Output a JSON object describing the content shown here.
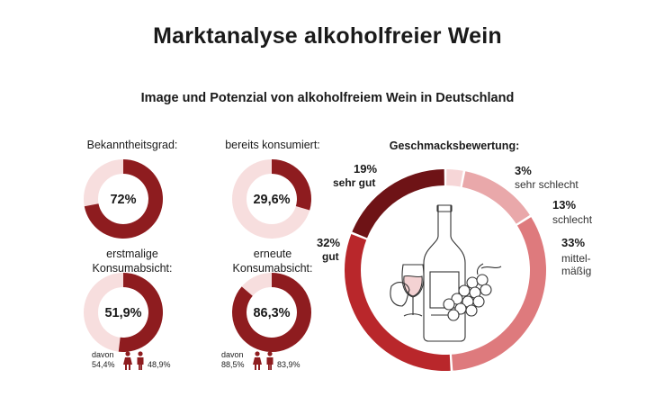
{
  "header": {
    "title": "Marktanalyse alkoholfreier Wein",
    "subtitle": "Image und Potenzial von alkoholfreiem Wein in Deutschland"
  },
  "colors": {
    "dark": "#8e1c1f",
    "track": "#f7dede",
    "sehr_gut": "#6e1316",
    "gut": "#b9272b",
    "mittel": "#de7a7d",
    "schlecht": "#e9a8aa",
    "sehr_schlecht": "#f6d6d7"
  },
  "chart_data": [
    {
      "type": "pie",
      "title": "Bekanntheitsgrad:",
      "value": 72,
      "value_label": "72%"
    },
    {
      "type": "pie",
      "title": "bereits konsumiert:",
      "value": 29.6,
      "value_label": "29,6%"
    },
    {
      "type": "pie",
      "title_line1": "erstmalige",
      "title_line2": "Konsumabsicht:",
      "value": 51.9,
      "value_label": "51,9%",
      "breakdown": {
        "prefix": "davon",
        "female": "54,4%",
        "male": "48,9%"
      }
    },
    {
      "type": "pie",
      "title_line1": "erneute",
      "title_line2": "Konsumabsicht:",
      "value": 86.3,
      "value_label": "86,3%",
      "breakdown": {
        "prefix": "davon",
        "female": "88,5%",
        "male": "83,9%"
      }
    },
    {
      "type": "pie",
      "title": "Geschmacksbewertung:",
      "slices": [
        {
          "key": "sehr_schlecht",
          "value": 3,
          "pct": "3%",
          "label": "sehr schlecht"
        },
        {
          "key": "schlecht",
          "value": 13,
          "pct": "13%",
          "label": "schlecht"
        },
        {
          "key": "mittel",
          "value": 33,
          "pct": "33%",
          "label_line1": "mittel-",
          "label_line2": "mäßig"
        },
        {
          "key": "gut",
          "value": 32,
          "pct": "32%",
          "label": "gut"
        },
        {
          "key": "sehr_gut",
          "value": 19,
          "pct": "19%",
          "label": "sehr gut"
        }
      ]
    }
  ]
}
